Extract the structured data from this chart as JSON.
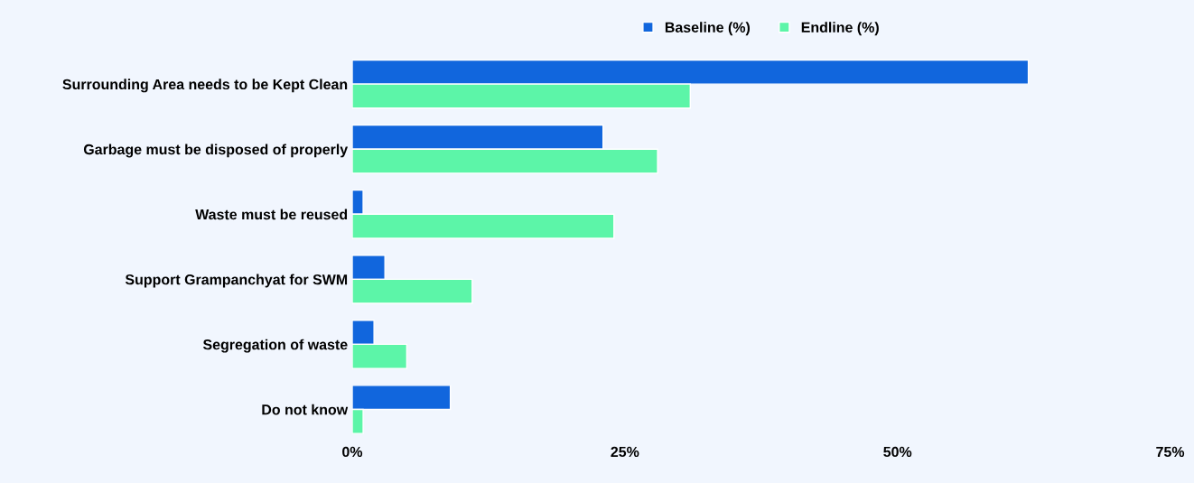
{
  "chart_data": {
    "type": "bar",
    "orientation": "horizontal",
    "categories": [
      "Surrounding Area needs to be Kept Clean",
      "Garbage must be disposed of properly",
      "Waste must be reused",
      "Support Grampanchyat for SWM",
      "Segregation of waste",
      "Do not know"
    ],
    "series": [
      {
        "name": "Baseline (%)",
        "color": "#1166dd",
        "values": [
          62,
          23,
          1,
          3,
          2,
          9
        ]
      },
      {
        "name": "Endline (%)",
        "color": "#5cf5a8",
        "values": [
          31,
          28,
          24,
          11,
          5,
          1
        ]
      }
    ],
    "xlim": [
      0,
      75
    ],
    "xticks": [
      {
        "value": 0,
        "label": "0%"
      },
      {
        "value": 25,
        "label": "25%"
      },
      {
        "value": 50,
        "label": "50%"
      },
      {
        "value": 75,
        "label": "75%"
      }
    ],
    "legend": "top",
    "grid": false
  }
}
